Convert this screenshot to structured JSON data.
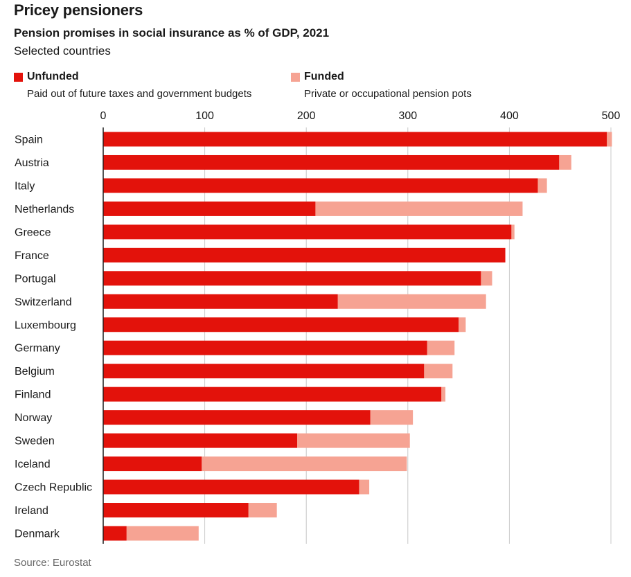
{
  "title": "Pricey pensioners",
  "subtitle": "Pension promises in social insurance as % of GDP, 2021",
  "subsubtitle": "Selected countries",
  "legend": [
    {
      "name": "Unfunded",
      "desc": "Paid out of future taxes and government budgets",
      "color": "#e3120b"
    },
    {
      "name": "Funded",
      "desc": "Private or occupational pension pots",
      "color": "#f6a393"
    }
  ],
  "source": "Source: Eurostat",
  "chart_data": {
    "type": "bar",
    "orientation": "horizontal",
    "stacked": true,
    "title": "Pricey pensioners",
    "subtitle": "Pension promises in social insurance as % of GDP, 2021",
    "xlim": [
      0,
      500
    ],
    "xticks": [
      0,
      100,
      200,
      300,
      400,
      500
    ],
    "grid": true,
    "legend_position": "top-left",
    "categories": [
      "Spain",
      "Austria",
      "Italy",
      "Netherlands",
      "Greece",
      "France",
      "Portugal",
      "Switzerland",
      "Luxembourg",
      "Germany",
      "Belgium",
      "Finland",
      "Norway",
      "Sweden",
      "Iceland",
      "Czech Republic",
      "Ireland",
      "Denmark"
    ],
    "series": [
      {
        "name": "Unfunded",
        "color": "#e3120b",
        "values": [
          496,
          449,
          428,
          209,
          402,
          396,
          372,
          231,
          350,
          319,
          316,
          333,
          263,
          191,
          97,
          252,
          143,
          23
        ]
      },
      {
        "name": "Funded",
        "color": "#f6a393",
        "values": [
          5,
          12,
          9,
          204,
          3,
          0,
          11,
          146,
          7,
          27,
          28,
          4,
          42,
          111,
          202,
          10,
          28,
          71
        ]
      }
    ]
  }
}
